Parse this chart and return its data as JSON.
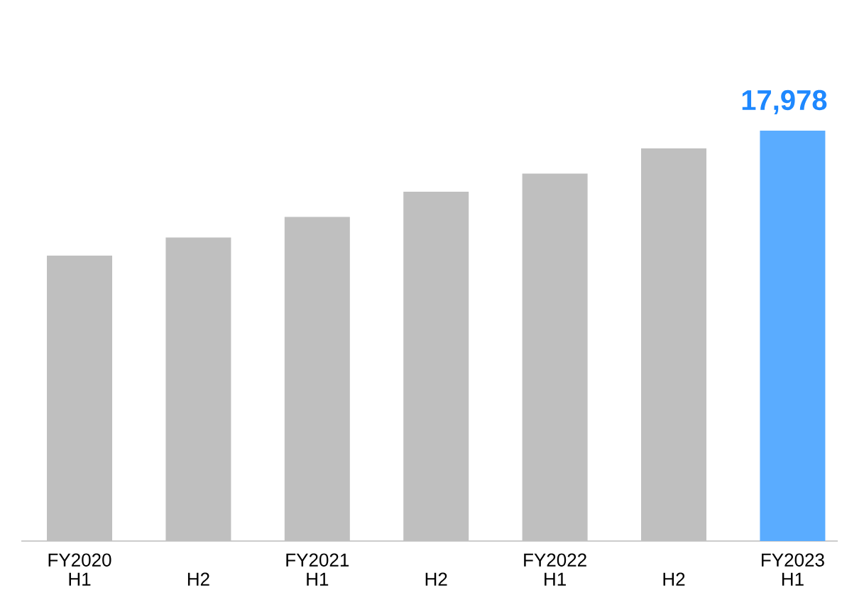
{
  "chart_data": {
    "type": "bar",
    "categories": [
      "FY2020 H1",
      "H2",
      "FY2021 H1",
      "H2",
      "FY2022 H1",
      "H2",
      "FY2023 H1"
    ],
    "values": [
      12500,
      13300,
      14200,
      15300,
      16100,
      17200,
      17978
    ],
    "colors": [
      "#bfbfbf",
      "#bfbfbf",
      "#bfbfbf",
      "#bfbfbf",
      "#bfbfbf",
      "#bfbfbf",
      "#5aacff"
    ],
    "value_labels": [
      null,
      null,
      null,
      null,
      null,
      null,
      "17,978"
    ]
  }
}
